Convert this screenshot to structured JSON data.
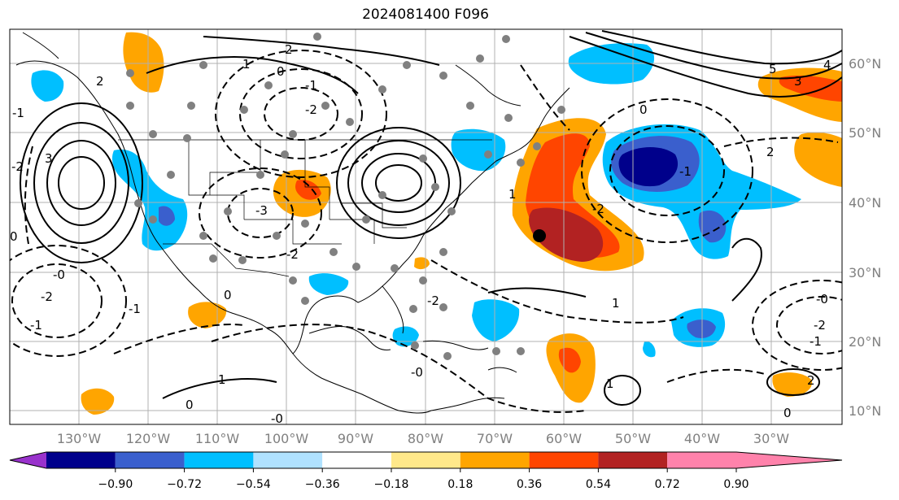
{
  "title": "2024081400 F096",
  "lon_labels": [
    "130°W",
    "120°W",
    "110°W",
    "100°W",
    "90°W",
    "80°W",
    "70°W",
    "60°W",
    "50°W",
    "40°W",
    "30°W"
  ],
  "lat_labels": [
    "60°N",
    "50°N",
    "40°N",
    "30°N",
    "20°N",
    "10°N"
  ],
  "colorbar": {
    "ticks": [
      "−0.90",
      "−0.72",
      "−0.54",
      "−0.36",
      "−0.18",
      "0.18",
      "0.36",
      "0.54",
      "0.72",
      "0.90"
    ],
    "colors": [
      "#9932cc",
      "#00008b",
      "#3a5fcd",
      "#00bfff",
      "#b0e2ff",
      "#ffffff",
      "#ffe88a",
      "#ffa500",
      "#ff4500",
      "#b22222",
      "#ff82ab"
    ]
  },
  "contour_labels": [
    {
      "text": "1"
    },
    {
      "text": "2"
    },
    {
      "text": "0"
    },
    {
      "text": "2"
    },
    {
      "text": "3"
    },
    {
      "text": "-2"
    },
    {
      "text": "-1"
    },
    {
      "text": "-0"
    },
    {
      "text": "-2"
    },
    {
      "text": "-1"
    },
    {
      "text": "-3"
    },
    {
      "text": "-2"
    },
    {
      "text": "4"
    },
    {
      "text": "5"
    },
    {
      "text": "3"
    },
    {
      "text": "0"
    },
    {
      "text": "-1"
    },
    {
      "text": "-2"
    },
    {
      "text": "1"
    },
    {
      "text": "0"
    },
    {
      "text": "-1"
    },
    {
      "text": "1"
    },
    {
      "text": "0"
    },
    {
      "text": "-2"
    },
    {
      "text": "-0"
    },
    {
      "text": "1"
    },
    {
      "text": "2"
    },
    {
      "text": "0"
    },
    {
      "text": "-2"
    },
    {
      "text": "-1"
    },
    {
      "text": "-0"
    },
    {
      "text": "2"
    },
    {
      "text": "-0"
    },
    {
      "text": "-2"
    },
    {
      "text": "-1"
    },
    {
      "text": "0"
    },
    {
      "text": "1"
    }
  ]
}
